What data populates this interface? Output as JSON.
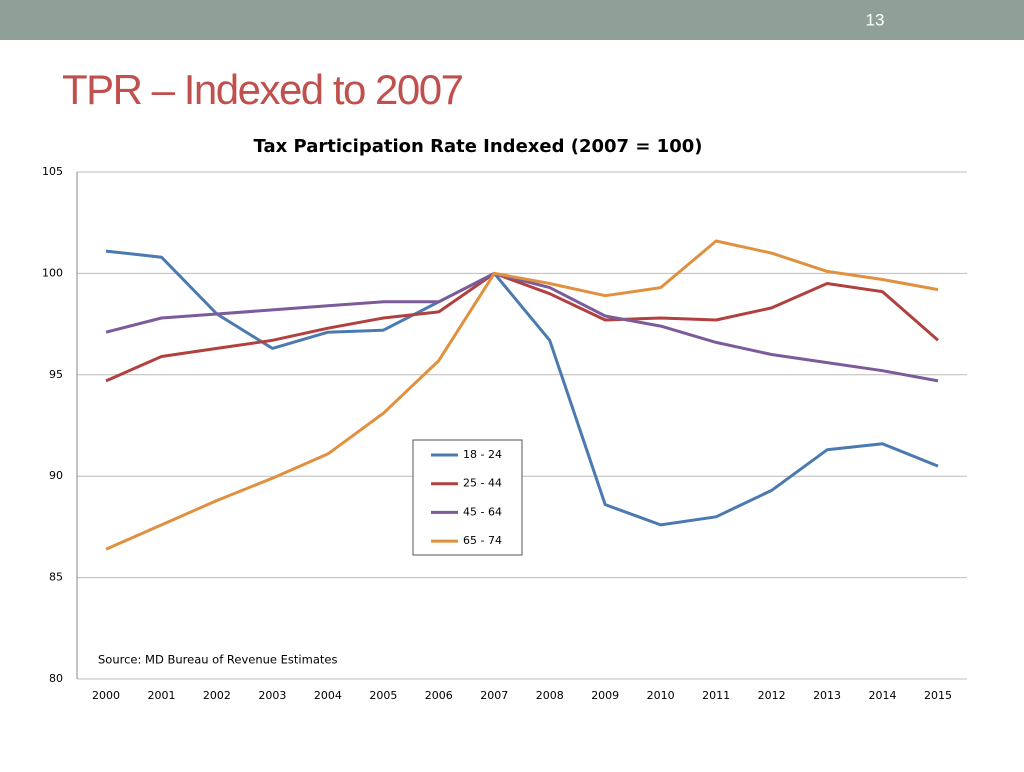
{
  "slide_number": "13",
  "slide_title": "TPR – Indexed to 2007",
  "chart_data": {
    "type": "line",
    "title": "Tax Participation Rate Indexed  (2007 = 100)",
    "source": "Source: MD Bureau of Revenue Estimates",
    "categories": [
      "2000",
      "2001",
      "2002",
      "2003",
      "2004",
      "2005",
      "2006",
      "2007",
      "2008",
      "2009",
      "2010",
      "2011",
      "2012",
      "2013",
      "2014",
      "2015"
    ],
    "series": [
      {
        "name": "18 - 24",
        "color": "#4a7ab0",
        "values": [
          101.1,
          100.8,
          98.0,
          96.3,
          97.1,
          97.2,
          98.6,
          100,
          96.7,
          88.6,
          87.6,
          88.0,
          89.3,
          91.3,
          91.6,
          90.5
        ]
      },
      {
        "name": "25 - 44",
        "color": "#b0413e",
        "values": [
          94.7,
          95.9,
          96.3,
          96.7,
          97.3,
          97.8,
          98.1,
          100,
          99.0,
          97.7,
          97.8,
          97.7,
          98.3,
          99.5,
          99.1,
          96.7
        ]
      },
      {
        "name": "45 - 64",
        "color": "#7c5b9b",
        "values": [
          97.1,
          97.8,
          98.0,
          98.2,
          98.4,
          98.6,
          98.6,
          100,
          99.3,
          97.9,
          97.4,
          96.6,
          96.0,
          95.6,
          95.2,
          94.7
        ]
      },
      {
        "name": "65 - 74",
        "color": "#e0913f",
        "values": [
          86.4,
          87.6,
          88.8,
          89.9,
          91.1,
          93.1,
          95.7,
          100,
          99.5,
          98.9,
          99.3,
          101.6,
          101.0,
          100.1,
          99.7,
          99.2
        ]
      }
    ],
    "ylim": [
      80,
      105
    ],
    "yticks": [
      80,
      85,
      90,
      95,
      100,
      105
    ],
    "grid": true,
    "legend": "center"
  }
}
